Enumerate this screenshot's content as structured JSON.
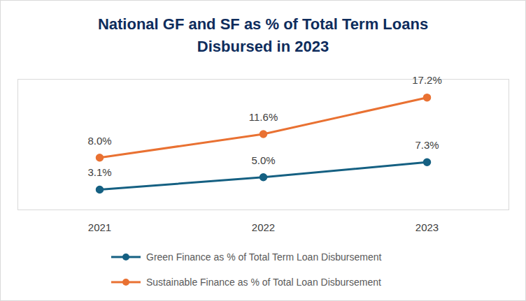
{
  "chart_data": {
    "type": "line",
    "title": "National GF and SF as % of Total Term Loans\nDisbursed in 2023",
    "categories": [
      "2021",
      "2022",
      "2023"
    ],
    "series": [
      {
        "name": "Green Finance as % of Total Term Loan Disbursement",
        "color": "#156082",
        "marker": "circle",
        "values": [
          3.1,
          5.0,
          7.3
        ],
        "value_labels": [
          "3.1%",
          "5.0%",
          "7.3%"
        ]
      },
      {
        "name": "Sustainable Finance as % of Total Loan Disbursement",
        "color": "#e97132",
        "marker": "circle",
        "values": [
          8.0,
          11.6,
          17.2
        ],
        "value_labels": [
          "8.0%",
          "11.6%",
          "17.2%"
        ]
      }
    ],
    "ylim": [
      0,
      20
    ],
    "yticks": [],
    "grid": false,
    "data_labels": true,
    "tick_labels": "x",
    "legend": "bottom"
  }
}
